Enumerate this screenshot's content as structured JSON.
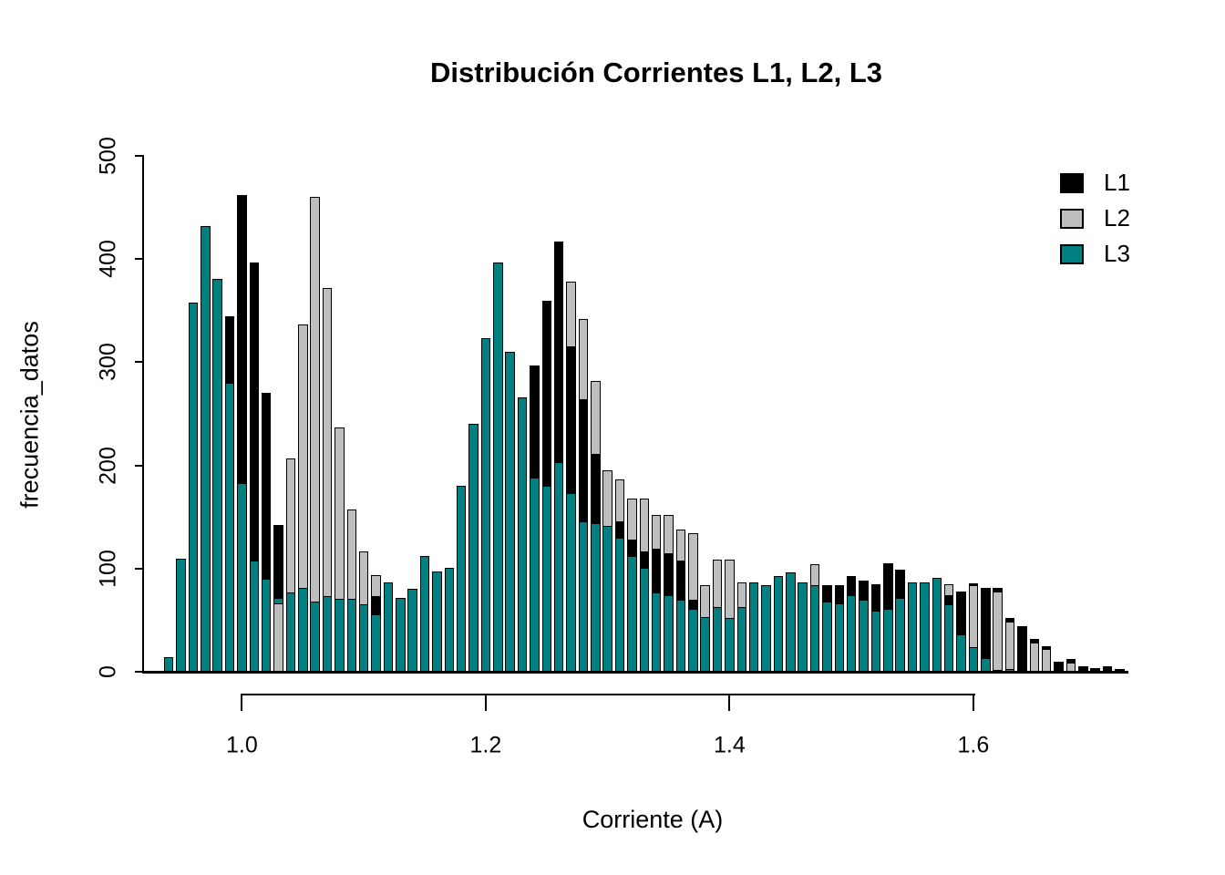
{
  "title": "Distribución Corrientes L1, L2, L3",
  "x_axis": {
    "label": "Corriente (A)",
    "tick_labels": [
      "1.0",
      "1.2",
      "1.4",
      "1.6"
    ],
    "tick_values": [
      1.0,
      1.2,
      1.4,
      1.6
    ]
  },
  "y_axis": {
    "label": "frecuencia_datos",
    "tick_labels": [
      "0",
      "100",
      "200",
      "300",
      "400",
      "500"
    ],
    "tick_values": [
      0,
      100,
      200,
      300,
      400,
      500
    ]
  },
  "legend": [
    {
      "label": "L1",
      "color": "#000000"
    },
    {
      "label": "L2",
      "color": "#BEBEBE"
    },
    {
      "label": "L3",
      "color": "#008080"
    }
  ],
  "chart_data": {
    "type": "bar",
    "title": "Distribución Corrientes L1, L2, L3",
    "xlabel": "Corriente (A)",
    "ylabel": "frecuencia_datos",
    "xlim": [
      0.93,
      1.73
    ],
    "ylim": [
      0,
      500
    ],
    "bin_width": 0.01,
    "grid": false,
    "legend_position": "top-right",
    "x": [
      0.94,
      0.95,
      0.96,
      0.97,
      0.98,
      0.99,
      1.0,
      1.01,
      1.02,
      1.03,
      1.04,
      1.05,
      1.06,
      1.07,
      1.08,
      1.09,
      1.1,
      1.11,
      1.12,
      1.13,
      1.14,
      1.15,
      1.16,
      1.17,
      1.18,
      1.19,
      1.2,
      1.21,
      1.22,
      1.23,
      1.24,
      1.25,
      1.26,
      1.27,
      1.28,
      1.29,
      1.3,
      1.31,
      1.32,
      1.33,
      1.34,
      1.35,
      1.36,
      1.37,
      1.38,
      1.39,
      1.4,
      1.41,
      1.42,
      1.43,
      1.44,
      1.45,
      1.46,
      1.47,
      1.48,
      1.49,
      1.5,
      1.51,
      1.52,
      1.53,
      1.54,
      1.55,
      1.56,
      1.57,
      1.58,
      1.59,
      1.6,
      1.61,
      1.62,
      1.63,
      1.64,
      1.65,
      1.66,
      1.67,
      1.68,
      1.69,
      1.7,
      1.71,
      1.72
    ],
    "series": [
      {
        "name": "L1",
        "color": "#000000",
        "values": [
          null,
          null,
          null,
          null,
          null,
          345,
          462,
          397,
          270,
          142,
          null,
          null,
          null,
          null,
          null,
          null,
          null,
          73,
          null,
          null,
          null,
          null,
          null,
          null,
          null,
          null,
          null,
          null,
          null,
          null,
          297,
          360,
          417,
          315,
          264,
          211,
          null,
          146,
          128,
          117,
          119,
          115,
          108,
          70,
          null,
          null,
          null,
          null,
          null,
          null,
          null,
          null,
          null,
          null,
          84,
          84,
          93,
          88,
          85,
          105,
          99,
          null,
          null,
          null,
          74,
          78,
          86,
          81,
          81,
          52,
          44,
          32,
          25,
          10,
          12,
          5,
          4,
          5,
          3
        ]
      },
      {
        "name": "L2",
        "color": "#BEBEBE",
        "values": [
          null,
          null,
          null,
          null,
          null,
          null,
          null,
          null,
          null,
          66,
          207,
          337,
          460,
          372,
          237,
          157,
          117,
          94,
          null,
          null,
          null,
          null,
          null,
          null,
          null,
          null,
          null,
          null,
          null,
          null,
          null,
          null,
          null,
          378,
          342,
          282,
          195,
          186,
          168,
          168,
          152,
          152,
          138,
          134,
          84,
          109,
          109,
          87,
          null,
          null,
          null,
          null,
          null,
          104,
          null,
          null,
          null,
          null,
          null,
          null,
          null,
          null,
          null,
          null,
          85,
          null,
          84,
          null,
          78,
          49,
          null,
          28,
          22,
          null,
          9,
          null,
          null,
          null,
          null
        ]
      },
      {
        "name": "L3",
        "color": "#008080",
        "values": [
          14,
          110,
          358,
          432,
          381,
          280,
          183,
          108,
          90,
          72,
          77,
          81,
          68,
          73,
          71,
          71,
          65,
          56,
          87,
          72,
          80,
          112,
          97,
          101,
          180,
          240,
          323,
          397,
          310,
          266,
          188,
          180,
          203,
          173,
          146,
          144,
          141,
          130,
          112,
          101,
          77,
          74,
          70,
          61,
          53,
          63,
          52,
          63,
          87,
          84,
          93,
          96,
          87,
          84,
          68,
          66,
          74,
          70,
          59,
          61,
          72,
          87,
          87,
          91,
          65,
          36,
          24,
          13,
          2,
          3,
          null,
          null,
          null,
          null,
          null,
          null,
          null,
          null,
          null
        ]
      }
    ]
  }
}
